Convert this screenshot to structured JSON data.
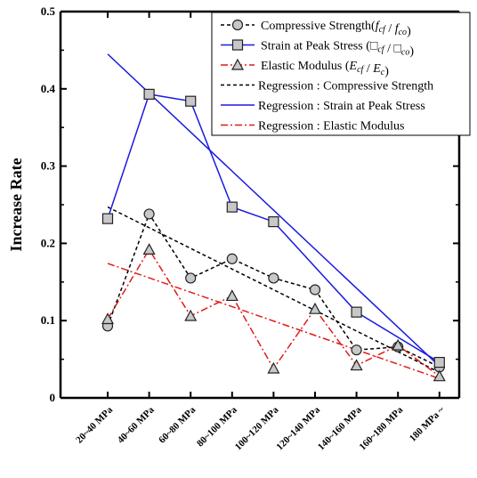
{
  "chart_data": {
    "type": "line",
    "ylabel": "Increase Rate",
    "xlabel": "",
    "ylim": [
      0,
      0.5
    ],
    "yticks": [
      0,
      0.1,
      0.2,
      0.3,
      0.4,
      0.5
    ],
    "ytick_labels": [
      "0",
      "0.1",
      "0.2",
      "0.3",
      "0.4",
      "0.5"
    ],
    "categories": [
      "20~40 MPa",
      "40~60 MPa",
      "60~80 MPa",
      "80~100 MPa",
      "100~120 MPa",
      "120~140 MPa",
      "140~160 MPa",
      "160~180 MPa",
      "180 MPa ~"
    ],
    "legend_position": "top-right",
    "series": [
      {
        "name": "Compressive Strength(f_cf / f_co)",
        "legend_prefix": "Compressive Strength(",
        "legend_italic": "f",
        "legend_sub1": "cf",
        "legend_mid": " / ",
        "legend_italic2": "f",
        "legend_sub2": "co",
        "legend_suffix": ")",
        "marker": "circle",
        "color": "#000000",
        "dash": "dashed",
        "values": [
          0.093,
          0.238,
          0.155,
          0.18,
          0.155,
          0.14,
          0.062,
          0.066,
          0.04
        ]
      },
      {
        "name": "Strain at Peak Stress (□cf / □co)",
        "legend_prefix": "Strain at Peak Stress (",
        "legend_italic": "□",
        "legend_sub1": "cf",
        "legend_mid": " / ",
        "legend_italic2": "□",
        "legend_sub2": "co",
        "legend_suffix": ")",
        "marker": "square",
        "color": "#1a1ae0",
        "dash": "solid",
        "values": [
          0.232,
          0.393,
          0.384,
          0.247,
          0.228,
          null,
          0.111,
          null,
          0.046
        ]
      },
      {
        "name": "Elastic Modulus (E_cf / E_c)",
        "legend_prefix": "Elastic Modulus (",
        "legend_italic": "E",
        "legend_sub1": "cf",
        "legend_mid": " / ",
        "legend_italic2": "E",
        "legend_sub2": "c",
        "legend_suffix": ")",
        "marker": "triangle",
        "color": "#e01a1a",
        "dash": "dashdot",
        "values": [
          0.102,
          0.192,
          0.106,
          0.132,
          0.038,
          0.115,
          0.042,
          0.068,
          0.028
        ]
      }
    ],
    "regressions": [
      {
        "name": "Regression : Compressive Strength",
        "color": "#000000",
        "dash": "dashed",
        "start": 0.247,
        "end": 0.033
      },
      {
        "name": "Regression : Strain at Peak Stress",
        "color": "#1a1ae0",
        "dash": "solid",
        "start": 0.445,
        "end": 0.041
      },
      {
        "name": "Regression : Elastic Modulus",
        "color": "#e01a1a",
        "dash": "dashdot",
        "start": 0.174,
        "end": 0.025
      }
    ]
  }
}
